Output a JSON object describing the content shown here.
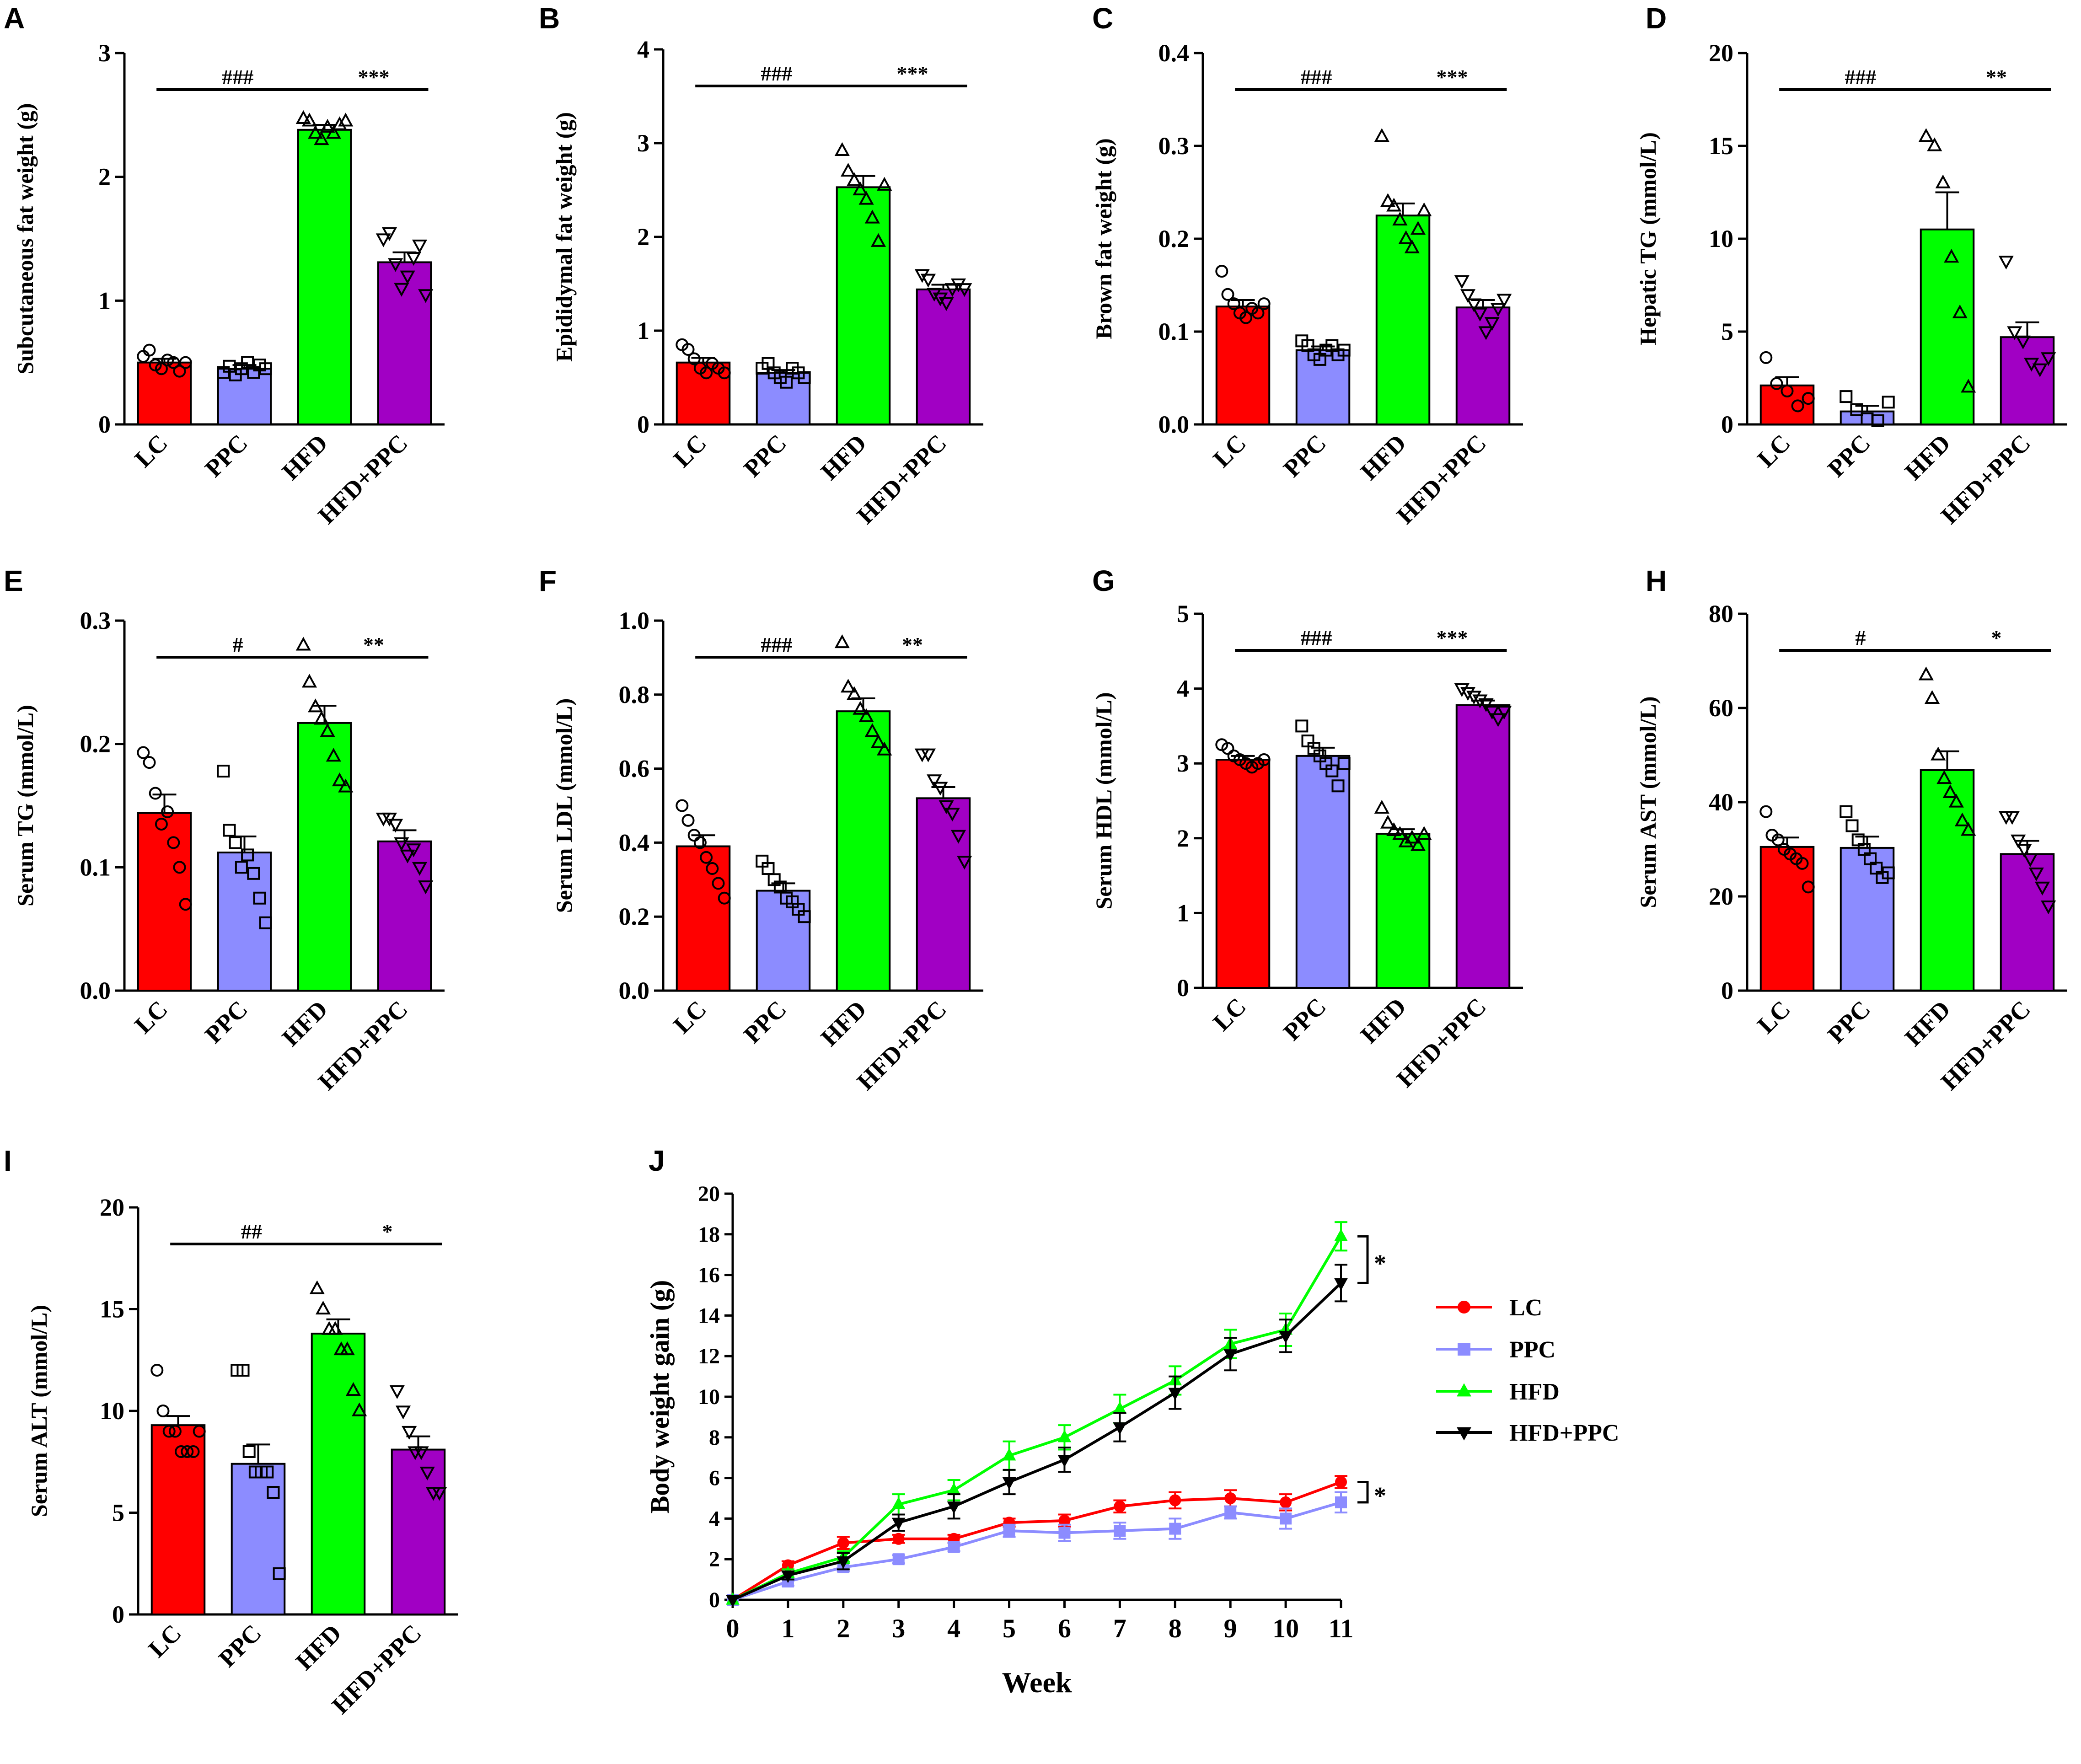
{
  "figure": {
    "colors": {
      "LC": "#ff0000",
      "PPC": "#8c8cff",
      "HFD": "#00ff00",
      "HFD+PPC": "#a100c4",
      "axis": "#000000",
      "HFD+PPC_line": "#000000"
    },
    "marker_symbols": {
      "LC": "circle",
      "PPC": "square",
      "HFD": "triangle-up",
      "HFD+PPC": "triangle-down"
    }
  },
  "chart_data": [
    {
      "panel": "A",
      "type": "bar",
      "ylabel": "Subcutaneous fat weight (g)",
      "categories": [
        "LC",
        "PPC",
        "HFD",
        "HFD+PPC"
      ],
      "values": [
        0.5,
        0.45,
        2.38,
        1.31
      ],
      "errors": [
        0.03,
        0.03,
        0.04,
        0.08
      ],
      "ylim": [
        0,
        3
      ],
      "yticks": [
        0,
        1,
        2,
        3
      ],
      "tick_labels": [
        "0",
        "1",
        "2",
        "3"
      ],
      "points": [
        [
          0.55,
          0.6,
          0.48,
          0.45,
          0.52,
          0.5,
          0.43,
          0.5
        ],
        [
          0.42,
          0.47,
          0.4,
          0.45,
          0.5,
          0.42,
          0.48,
          0.45
        ],
        [
          2.47,
          2.45,
          2.35,
          2.3,
          2.4,
          2.35,
          2.42,
          2.45
        ],
        [
          1.5,
          1.55,
          1.3,
          1.1,
          1.2,
          1.35,
          1.45,
          1.05
        ]
      ],
      "significance": [
        {
          "label": "###",
          "from": 0,
          "to": 2
        },
        {
          "label": "***",
          "from": 2,
          "to": 3
        }
      ]
    },
    {
      "panel": "B",
      "type": "bar",
      "ylabel": "Epididymal fat weight (g)",
      "categories": [
        "LC",
        "PPC",
        "HFD",
        "HFD+PPC"
      ],
      "values": [
        0.66,
        0.55,
        2.53,
        1.44
      ],
      "errors": [
        0.05,
        0.03,
        0.12,
        0.05
      ],
      "ylim": [
        0,
        4
      ],
      "yticks": [
        0,
        1,
        2,
        3,
        4
      ],
      "tick_labels": [
        "0",
        "1",
        "2",
        "3",
        "4"
      ],
      "points": [
        [
          0.85,
          0.8,
          0.7,
          0.6,
          0.55,
          0.65,
          0.6,
          0.55
        ],
        [
          0.6,
          0.65,
          0.55,
          0.5,
          0.45,
          0.6,
          0.55,
          0.5
        ],
        [
          2.92,
          2.7,
          2.6,
          2.5,
          2.4,
          2.2,
          1.95,
          2.55
        ],
        [
          1.6,
          1.55,
          1.4,
          1.35,
          1.3,
          1.45,
          1.5,
          1.45
        ]
      ],
      "significance": [
        {
          "label": "###",
          "from": 0,
          "to": 2
        },
        {
          "label": "***",
          "from": 2,
          "to": 3
        }
      ]
    },
    {
      "panel": "C",
      "type": "bar",
      "ylabel": "Brown fat weight (g)",
      "categories": [
        "LC",
        "PPC",
        "HFD",
        "HFD+PPC"
      ],
      "values": [
        0.127,
        0.08,
        0.225,
        0.126
      ],
      "errors": [
        0.007,
        0.004,
        0.013,
        0.008
      ],
      "ylim": [
        0,
        0.4
      ],
      "yticks": [
        0,
        0.1,
        0.2,
        0.3,
        0.4
      ],
      "tick_labels": [
        "0.0",
        "0.1",
        "0.2",
        "0.3",
        "0.4"
      ],
      "points": [
        [
          0.165,
          0.14,
          0.13,
          0.12,
          0.115,
          0.125,
          0.12,
          0.13
        ],
        [
          0.09,
          0.085,
          0.075,
          0.07,
          0.08,
          0.085,
          0.075,
          0.08
        ],
        [
          0.31,
          0.24,
          0.235,
          0.22,
          0.2,
          0.19,
          0.21,
          0.23
        ],
        [
          0.155,
          0.14,
          0.13,
          0.12,
          0.1,
          0.11,
          0.125,
          0.135
        ]
      ],
      "significance": [
        {
          "label": "###",
          "from": 0,
          "to": 2
        },
        {
          "label": "***",
          "from": 2,
          "to": 3
        }
      ]
    },
    {
      "panel": "D",
      "type": "bar",
      "ylabel": "Hepatic TG (mmol/L)",
      "categories": [
        "LC",
        "PPC",
        "HFD",
        "HFD+PPC"
      ],
      "values": [
        2.1,
        0.7,
        10.5,
        4.7
      ],
      "errors": [
        0.45,
        0.3,
        2.0,
        0.8
      ],
      "ylim": [
        0,
        20
      ],
      "yticks": [
        0,
        5,
        10,
        15,
        20
      ],
      "tick_labels": [
        "0",
        "5",
        "10",
        "15",
        "20"
      ],
      "points": [
        [
          3.6,
          2.2,
          1.8,
          1.0,
          1.4
        ],
        [
          1.5,
          0.8,
          0.3,
          0.2,
          1.2
        ],
        [
          15.5,
          15.0,
          13.0,
          9.0,
          6.0,
          2.0
        ],
        [
          8.8,
          5.0,
          4.5,
          3.3,
          3.0,
          3.6
        ]
      ],
      "significance": [
        {
          "label": "###",
          "from": 0,
          "to": 2
        },
        {
          "label": "**",
          "from": 2,
          "to": 3
        }
      ]
    },
    {
      "panel": "E",
      "type": "bar",
      "ylabel": "Serum TG (mmol/L)",
      "categories": [
        "LC",
        "PPC",
        "HFD",
        "HFD+PPC"
      ],
      "values": [
        0.144,
        0.112,
        0.217,
        0.121
      ],
      "errors": [
        0.015,
        0.013,
        0.014,
        0.009
      ],
      "ylim": [
        0,
        0.3
      ],
      "yticks": [
        0,
        0.1,
        0.2,
        0.3
      ],
      "tick_labels": [
        "0.0",
        "0.1",
        "0.2",
        "0.3"
      ],
      "points": [
        [
          0.193,
          0.185,
          0.16,
          0.135,
          0.145,
          0.12,
          0.1,
          0.07
        ],
        [
          0.178,
          0.13,
          0.12,
          0.1,
          0.11,
          0.095,
          0.075,
          0.055
        ],
        [
          0.28,
          0.25,
          0.23,
          0.22,
          0.21,
          0.19,
          0.17,
          0.165
        ],
        [
          0.14,
          0.14,
          0.135,
          0.12,
          0.11,
          0.115,
          0.1,
          0.085
        ]
      ],
      "significance": [
        {
          "label": "#",
          "from": 0,
          "to": 2
        },
        {
          "label": "**",
          "from": 2,
          "to": 3
        }
      ]
    },
    {
      "panel": "F",
      "type": "bar",
      "ylabel": "Serum LDL (mmol/L)",
      "categories": [
        "LC",
        "PPC",
        "HFD",
        "HFD+PPC"
      ],
      "values": [
        0.39,
        0.27,
        0.755,
        0.52
      ],
      "errors": [
        0.03,
        0.02,
        0.035,
        0.03
      ],
      "ylim": [
        0,
        1.0
      ],
      "yticks": [
        0,
        0.2,
        0.4,
        0.6,
        0.8,
        1.0
      ],
      "tick_labels": [
        "0.0",
        "0.2",
        "0.4",
        "0.6",
        "0.8",
        "1.0"
      ],
      "points": [
        [
          0.5,
          0.46,
          0.42,
          0.4,
          0.36,
          0.33,
          0.29,
          0.25
        ],
        [
          0.35,
          0.33,
          0.3,
          0.28,
          0.25,
          0.24,
          0.22,
          0.2
        ],
        [
          0.94,
          0.82,
          0.8,
          0.76,
          0.74,
          0.7,
          0.67,
          0.65
        ],
        [
          0.64,
          0.64,
          0.57,
          0.55,
          0.5,
          0.48,
          0.42,
          0.35
        ]
      ],
      "significance": [
        {
          "label": "###",
          "from": 0,
          "to": 2
        },
        {
          "label": "**",
          "from": 2,
          "to": 3
        }
      ]
    },
    {
      "panel": "G",
      "type": "bar",
      "ylabel": "Serum HDL (mmol/L)",
      "categories": [
        "LC",
        "PPC",
        "HFD",
        "HFD+PPC"
      ],
      "values": [
        3.05,
        3.1,
        2.06,
        3.78
      ],
      "errors": [
        0.05,
        0.11,
        0.06,
        0.06
      ],
      "ylim": [
        0,
        5
      ],
      "yticks": [
        0,
        1,
        2,
        3,
        4,
        5
      ],
      "tick_labels": [
        "0",
        "1",
        "2",
        "3",
        "4",
        "5"
      ],
      "points": [
        [
          3.25,
          3.2,
          3.1,
          3.05,
          3.0,
          2.95,
          3.0,
          3.05
        ],
        [
          3.5,
          3.3,
          3.2,
          3.1,
          3.0,
          2.9,
          2.7,
          3.0
        ],
        [
          2.4,
          2.2,
          2.1,
          2.05,
          1.95,
          2.0,
          1.9,
          2.05
        ],
        [
          4.0,
          3.95,
          3.9,
          3.85,
          3.8,
          3.7,
          3.6,
          3.7
        ]
      ],
      "significance": [
        {
          "label": "###",
          "from": 0,
          "to": 2
        },
        {
          "label": "***",
          "from": 2,
          "to": 3
        }
      ]
    },
    {
      "panel": "H",
      "type": "bar",
      "ylabel": "Serum AST (mmol/L)",
      "categories": [
        "LC",
        "PPC",
        "HFD",
        "HFD+PPC"
      ],
      "values": [
        30.5,
        30.3,
        46.8,
        29.0
      ],
      "errors": [
        2.0,
        2.4,
        4.0,
        2.8
      ],
      "ylim": [
        0,
        80
      ],
      "yticks": [
        0,
        20,
        40,
        60,
        80
      ],
      "tick_labels": [
        "0",
        "20",
        "40",
        "60",
        "80"
      ],
      "points": [
        [
          38,
          33,
          32,
          30,
          29,
          28,
          27,
          22
        ],
        [
          38,
          35,
          32,
          30,
          28,
          26,
          24,
          25
        ],
        [
          67,
          62,
          50,
          45,
          42,
          40,
          36,
          34
        ],
        [
          37,
          37,
          32,
          30,
          28,
          25,
          22,
          18
        ]
      ],
      "significance": [
        {
          "label": "#",
          "from": 0,
          "to": 2
        },
        {
          "label": "*",
          "from": 2,
          "to": 3
        }
      ]
    },
    {
      "panel": "I",
      "type": "bar",
      "ylabel": "Serum ALT (mmol/L)",
      "categories": [
        "LC",
        "PPC",
        "HFD",
        "HFD+PPC"
      ],
      "values": [
        9.3,
        7.4,
        13.8,
        8.1
      ],
      "errors": [
        0.45,
        0.95,
        0.7,
        0.65
      ],
      "ylim": [
        0,
        20
      ],
      "yticks": [
        0,
        5,
        10,
        15,
        20
      ],
      "tick_labels": [
        "0",
        "5",
        "10",
        "15",
        "20"
      ],
      "points": [
        [
          12,
          10,
          9,
          9,
          8,
          8,
          8,
          9
        ],
        [
          12,
          12,
          8,
          7,
          7,
          7,
          6,
          2
        ],
        [
          16,
          15,
          14,
          14,
          13,
          13,
          11,
          10
        ],
        [
          11,
          10,
          9,
          8,
          8,
          7,
          6,
          6
        ]
      ],
      "significance": [
        {
          "label": "##",
          "from": 0,
          "to": 2
        },
        {
          "label": "*",
          "from": 2,
          "to": 3
        }
      ]
    },
    {
      "panel": "J",
      "type": "line",
      "xlabel": "Week",
      "ylabel": "Body weight gain (g)",
      "x": [
        0,
        1,
        2,
        3,
        4,
        5,
        6,
        7,
        8,
        9,
        10,
        11
      ],
      "ylim": [
        0,
        20
      ],
      "xlim": [
        0,
        11
      ],
      "yticks": [
        0,
        2,
        4,
        6,
        8,
        10,
        12,
        14,
        16,
        18,
        20
      ],
      "tick_labels": [
        "0",
        "2",
        "4",
        "6",
        "8",
        "10",
        "12",
        "14",
        "16",
        "18",
        "20"
      ],
      "x_tick_labels": [
        "0",
        "1",
        "2",
        "3",
        "4",
        "5",
        "6",
        "7",
        "8",
        "9",
        "10",
        "11"
      ],
      "series": [
        {
          "name": "LC",
          "values": [
            0,
            1.7,
            2.8,
            3.0,
            3.0,
            3.8,
            3.9,
            4.6,
            4.9,
            5.0,
            4.8,
            5.8
          ],
          "errors": [
            0,
            0.2,
            0.3,
            0.2,
            0.2,
            0.2,
            0.3,
            0.3,
            0.4,
            0.4,
            0.4,
            0.3
          ]
        },
        {
          "name": "PPC",
          "values": [
            0,
            0.9,
            1.6,
            2.0,
            2.6,
            3.4,
            3.3,
            3.4,
            3.5,
            4.3,
            4.0,
            4.8
          ],
          "errors": [
            0,
            0.2,
            0.2,
            0.2,
            0.2,
            0.3,
            0.4,
            0.4,
            0.5,
            0.3,
            0.5,
            0.5
          ]
        },
        {
          "name": "HFD",
          "values": [
            0,
            1.3,
            2.1,
            4.7,
            5.4,
            7.1,
            8.0,
            9.4,
            10.8,
            12.6,
            13.3,
            17.9
          ],
          "errors": [
            0,
            0.2,
            0.3,
            0.5,
            0.5,
            0.7,
            0.6,
            0.7,
            0.7,
            0.7,
            0.8,
            0.7
          ]
        },
        {
          "name": "HFD+PPC",
          "values": [
            0,
            1.2,
            1.9,
            3.8,
            4.6,
            5.8,
            6.9,
            8.5,
            10.2,
            12.1,
            13.0,
            15.6
          ],
          "errors": [
            0,
            0.2,
            0.4,
            0.4,
            0.6,
            0.6,
            0.6,
            0.7,
            0.8,
            0.8,
            0.8,
            0.9
          ]
        }
      ],
      "legend": [
        "LC",
        "PPC",
        "HFD",
        "HFD+PPC"
      ],
      "legend_position": "right",
      "annotations": [
        {
          "label": "*",
          "between": [
            "HFD",
            "HFD+PPC"
          ]
        },
        {
          "label": "*",
          "between": [
            "LC",
            "PPC"
          ]
        }
      ]
    }
  ]
}
